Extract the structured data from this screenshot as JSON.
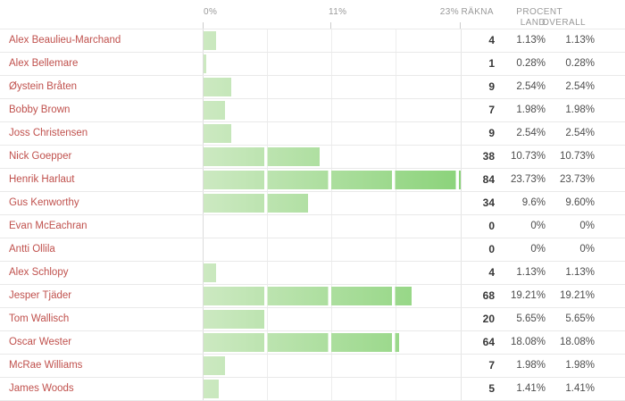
{
  "table": {
    "header": {
      "axis_ticks": [
        "0%",
        "11%",
        "23%"
      ],
      "count_label": "RÄKNA",
      "percent_label": "PROCENT",
      "land_label": "LAND",
      "overall_label": "OVERALL"
    },
    "rows": [
      {
        "name": "Alex Beaulieu-Marchand",
        "count": "4",
        "land": "1.13%",
        "overall": "1.13%",
        "pct": 1.13
      },
      {
        "name": "Alex Bellemare",
        "count": "1",
        "land": "0.28%",
        "overall": "0.28%",
        "pct": 0.28
      },
      {
        "name": "Øystein Bråten",
        "count": "9",
        "land": "2.54%",
        "overall": "2.54%",
        "pct": 2.54
      },
      {
        "name": "Bobby Brown",
        "count": "7",
        "land": "1.98%",
        "overall": "1.98%",
        "pct": 1.98
      },
      {
        "name": "Joss Christensen",
        "count": "9",
        "land": "2.54%",
        "overall": "2.54%",
        "pct": 2.54
      },
      {
        "name": "Nick Goepper",
        "count": "38",
        "land": "10.73%",
        "overall": "10.73%",
        "pct": 10.73
      },
      {
        "name": "Henrik Harlaut",
        "count": "84",
        "land": "23.73%",
        "overall": "23.73%",
        "pct": 23.73
      },
      {
        "name": "Gus Kenworthy",
        "count": "34",
        "land": "9.6%",
        "overall": "9.60%",
        "pct": 9.6
      },
      {
        "name": "Evan McEachran",
        "count": "0",
        "land": "0%",
        "overall": "0%",
        "pct": 0
      },
      {
        "name": "Antti Ollila",
        "count": "0",
        "land": "0%",
        "overall": "0%",
        "pct": 0
      },
      {
        "name": "Alex Schlopy",
        "count": "4",
        "land": "1.13%",
        "overall": "1.13%",
        "pct": 1.13
      },
      {
        "name": "Jesper Tjäder",
        "count": "68",
        "land": "19.21%",
        "overall": "19.21%",
        "pct": 19.21
      },
      {
        "name": "Tom Wallisch",
        "count": "20",
        "land": "5.65%",
        "overall": "5.65%",
        "pct": 5.65
      },
      {
        "name": "Oscar Wester",
        "count": "64",
        "land": "18.08%",
        "overall": "18.08%",
        "pct": 18.08
      },
      {
        "name": "McRae Williams",
        "count": "7",
        "land": "1.98%",
        "overall": "1.98%",
        "pct": 1.98
      },
      {
        "name": "James Woods",
        "count": "5",
        "land": "1.41%",
        "overall": "1.41%",
        "pct": 1.41
      }
    ]
  },
  "colors": {
    "name_text": "#c0514d",
    "header_text": "#999999",
    "count_text": "#373737",
    "percent_text": "#4d4d4d",
    "row_border": "#e9e9e9",
    "gridline": "#ededed",
    "bar_gradient_start": "#cce9c1",
    "bar_gradient_end": "#8bd37a"
  },
  "chart_data": {
    "type": "bar",
    "orientation": "horizontal",
    "categories": [
      "Alex Beaulieu-Marchand",
      "Alex Bellemare",
      "Øystein Bråten",
      "Bobby Brown",
      "Joss Christensen",
      "Nick Goepper",
      "Henrik Harlaut",
      "Gus Kenworthy",
      "Evan McEachran",
      "Antti Ollila",
      "Alex Schlopy",
      "Jesper Tjäder",
      "Tom Wallisch",
      "Oscar Wester",
      "McRae Williams",
      "James Woods"
    ],
    "series": [
      {
        "name": "RÄKNA",
        "values": [
          4,
          1,
          9,
          7,
          9,
          38,
          84,
          34,
          0,
          0,
          4,
          68,
          20,
          64,
          7,
          5
        ]
      },
      {
        "name": "LAND %",
        "values": [
          1.13,
          0.28,
          2.54,
          1.98,
          2.54,
          10.73,
          23.73,
          9.6,
          0,
          0,
          1.13,
          19.21,
          5.65,
          18.08,
          1.98,
          1.41
        ]
      },
      {
        "name": "OVERALL %",
        "values": [
          1.13,
          0.28,
          2.54,
          1.98,
          2.54,
          10.73,
          23.73,
          9.6,
          0,
          0,
          1.13,
          19.21,
          5.65,
          18.08,
          1.98,
          1.41
        ]
      }
    ],
    "xlabel": "",
    "ylabel": "",
    "title": "",
    "axis_tick_labels": [
      "0%",
      "11%",
      "23%"
    ],
    "xlim": [
      0,
      23.73
    ],
    "grid": true
  }
}
